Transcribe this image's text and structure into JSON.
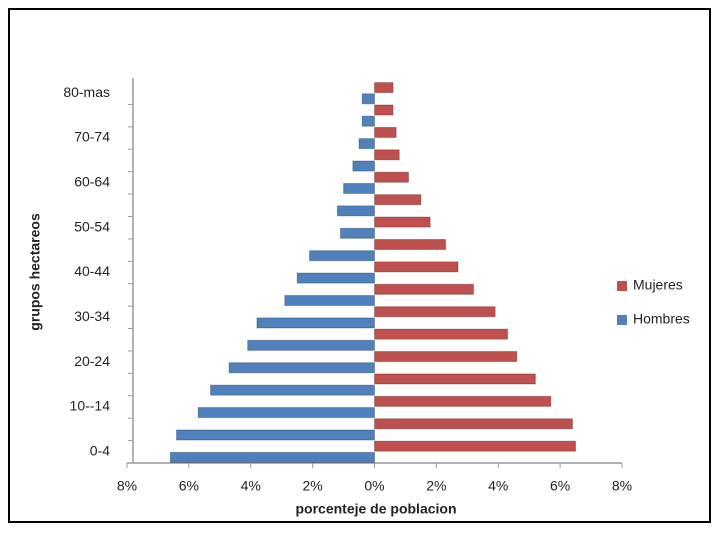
{
  "chart_data": {
    "type": "bar",
    "orientation": "horizontal",
    "x_label": "porcenteje de poblacion",
    "y_label": "grupos hectareos",
    "categories": [
      "0-4",
      null,
      "10--14",
      null,
      "20-24",
      null,
      "30-34",
      null,
      "40-44",
      null,
      "50-54",
      null,
      "60-64",
      null,
      "70-74",
      null,
      "80-mas"
    ],
    "series": [
      {
        "name": "Mujeres",
        "color": "#c0504d",
        "values": [
          6.5,
          6.4,
          5.7,
          5.2,
          4.6,
          4.3,
          3.9,
          3.2,
          2.7,
          2.3,
          1.8,
          1.5,
          1.1,
          0.8,
          0.7,
          0.6,
          0.6
        ]
      },
      {
        "name": "Hombres",
        "color": "#4f81bd",
        "values": [
          -6.6,
          -6.4,
          -5.7,
          -5.3,
          -4.7,
          -4.1,
          -3.8,
          -2.9,
          -2.5,
          -2.1,
          -1.1,
          -1.2,
          -1.0,
          -0.7,
          -0.5,
          -0.4,
          -0.4
        ]
      }
    ],
    "xlim": [
      -8,
      8
    ],
    "xticks": [
      {
        "value": -8,
        "label": "8%"
      },
      {
        "value": -6,
        "label": "6%"
      },
      {
        "value": -4,
        "label": "4%"
      },
      {
        "value": -2,
        "label": "2%"
      },
      {
        "value": 0,
        "label": "0%"
      },
      {
        "value": 2,
        "label": "2%"
      },
      {
        "value": 4,
        "label": "4%"
      },
      {
        "value": 6,
        "label": "6%"
      },
      {
        "value": 8,
        "label": "8%"
      }
    ],
    "grid": false,
    "legend": "right"
  }
}
